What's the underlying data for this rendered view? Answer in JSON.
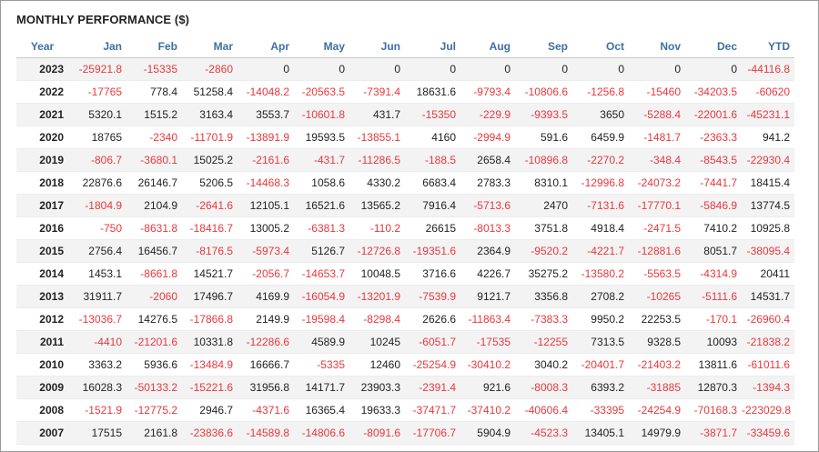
{
  "title": "MONTHLY PERFORMANCE ($)",
  "colors": {
    "negative": "#e8383d",
    "header": "#3d6fa5"
  },
  "table": {
    "headers": [
      "Year",
      "Jan",
      "Feb",
      "Mar",
      "Apr",
      "May",
      "Jun",
      "Jul",
      "Aug",
      "Sep",
      "Oct",
      "Nov",
      "Dec",
      "YTD"
    ],
    "rows": [
      [
        "2023",
        "-25921.8",
        "-15335",
        "-2860",
        "0",
        "0",
        "0",
        "0",
        "0",
        "0",
        "0",
        "0",
        "0",
        "-44116.8"
      ],
      [
        "2022",
        "-17765",
        "778.4",
        "51258.4",
        "-14048.2",
        "-20563.5",
        "-7391.4",
        "18631.6",
        "-9793.4",
        "-10806.6",
        "-1256.8",
        "-15460",
        "-34203.5",
        "-60620"
      ],
      [
        "2021",
        "5320.1",
        "1515.2",
        "3163.4",
        "3553.7",
        "-10601.8",
        "431.7",
        "-15350",
        "-229.9",
        "-9393.5",
        "3650",
        "-5288.4",
        "-22001.6",
        "-45231.1"
      ],
      [
        "2020",
        "18765",
        "-2340",
        "-11701.9",
        "-13891.9",
        "19593.5",
        "-13855.1",
        "4160",
        "-2994.9",
        "591.6",
        "6459.9",
        "-1481.7",
        "-2363.3",
        "941.2"
      ],
      [
        "2019",
        "-806.7",
        "-3680.1",
        "15025.2",
        "-2161.6",
        "-431.7",
        "-11286.5",
        "-188.5",
        "2658.4",
        "-10896.8",
        "-2270.2",
        "-348.4",
        "-8543.5",
        "-22930.4"
      ],
      [
        "2018",
        "22876.6",
        "26146.7",
        "5206.5",
        "-14468.3",
        "1058.6",
        "4330.2",
        "6683.4",
        "2783.3",
        "8310.1",
        "-12996.8",
        "-24073.2",
        "-7441.7",
        "18415.4"
      ],
      [
        "2017",
        "-1804.9",
        "2104.9",
        "-2641.6",
        "12105.1",
        "16521.6",
        "13565.2",
        "7916.4",
        "-5713.6",
        "2470",
        "-7131.6",
        "-17770.1",
        "-5846.9",
        "13774.5"
      ],
      [
        "2016",
        "-750",
        "-8631.8",
        "-18416.7",
        "13005.2",
        "-6381.3",
        "-110.2",
        "26615",
        "-8013.3",
        "3751.8",
        "4918.4",
        "-2471.5",
        "7410.2",
        "10925.8"
      ],
      [
        "2015",
        "2756.4",
        "16456.7",
        "-8176.5",
        "-5973.4",
        "5126.7",
        "-12726.8",
        "-19351.6",
        "2364.9",
        "-9520.2",
        "-4221.7",
        "-12881.6",
        "8051.7",
        "-38095.4"
      ],
      [
        "2014",
        "1453.1",
        "-8661.8",
        "14521.7",
        "-2056.7",
        "-14653.7",
        "10048.5",
        "3716.6",
        "4226.7",
        "35275.2",
        "-13580.2",
        "-5563.5",
        "-4314.9",
        "20411"
      ],
      [
        "2013",
        "31911.7",
        "-2060",
        "17496.7",
        "4169.9",
        "-16054.9",
        "-13201.9",
        "-7539.9",
        "9121.7",
        "3356.8",
        "2708.2",
        "-10265",
        "-5111.6",
        "14531.7"
      ],
      [
        "2012",
        "-13036.7",
        "14276.5",
        "-17866.8",
        "2149.9",
        "-19598.4",
        "-8298.4",
        "2626.6",
        "-11863.4",
        "-7383.3",
        "9950.2",
        "22253.5",
        "-170.1",
        "-26960.4"
      ],
      [
        "2011",
        "-4410",
        "-21201.6",
        "10331.8",
        "-12286.6",
        "4589.9",
        "10245",
        "-6051.7",
        "-17535",
        "-12255",
        "7313.5",
        "9328.5",
        "10093",
        "-21838.2"
      ],
      [
        "2010",
        "3363.2",
        "5936.6",
        "-13484.9",
        "16666.7",
        "-5335",
        "12460",
        "-25254.9",
        "-30410.2",
        "3040.2",
        "-20401.7",
        "-21403.2",
        "13811.6",
        "-61011.6"
      ],
      [
        "2009",
        "16028.3",
        "-50133.2",
        "-15221.6",
        "31956.8",
        "14171.7",
        "23903.3",
        "-2391.4",
        "921.6",
        "-8008.3",
        "6393.2",
        "-31885",
        "12870.3",
        "-1394.3"
      ],
      [
        "2008",
        "-1521.9",
        "-12775.2",
        "2946.7",
        "-4371.6",
        "16365.4",
        "19633.3",
        "-37471.7",
        "-37410.2",
        "-40606.4",
        "-33395",
        "-24254.9",
        "-70168.3",
        "-223029.8"
      ],
      [
        "2007",
        "17515",
        "2161.8",
        "-23836.6",
        "-14589.8",
        "-14806.6",
        "-8091.6",
        "-17706.7",
        "5904.9",
        "-4523.3",
        "13405.1",
        "14979.9",
        "-3871.7",
        "-33459.6"
      ]
    ]
  }
}
